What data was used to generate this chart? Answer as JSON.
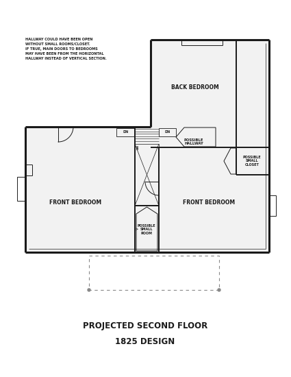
{
  "title_line1": "PROJECTED SECOND FLOOR",
  "title_line2": "1825 DESIGN",
  "annotation": "HALLWAY COULD HAVE BEEN OPEN\nWITHOUT SMALL ROOMS/CLOSET.\nIF TRUE, MAIN DOORS TO BEDROOMS\nMAY HAVE BEEN FROM THE HORIZONTAL\nHALLWAY INSTEAD OF VERTICAL SECTION.",
  "wall_color": "#1a1a1a",
  "bg_color": "#ffffff",
  "dashed_color": "#888888",
  "lw_outer": 2.2,
  "lw_inner": 1.4,
  "lw_thin": 0.7,
  "lw_stair": 0.5
}
